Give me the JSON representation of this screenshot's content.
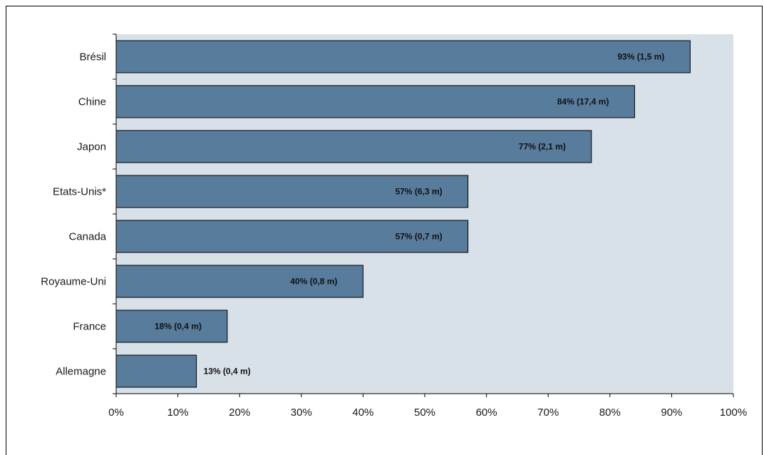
{
  "chart_data": {
    "type": "bar",
    "orientation": "horizontal",
    "categories": [
      "Brésil",
      "Chine",
      "Japon",
      "Etats-Unis*",
      "Canada",
      "Royaume-Uni",
      "France",
      "Allemagne"
    ],
    "values": [
      93,
      84,
      77,
      57,
      57,
      40,
      18,
      13
    ],
    "data_labels": [
      "93% (1,5 m)",
      "84% (17,4 m)",
      "77% (2,1 m)",
      "57% (6,3 m)",
      "57% (0,7 m)",
      "40% (0,8 m)",
      "18% (0,4 m)",
      "13% (0,4 m)"
    ],
    "x_ticks": [
      "0%",
      "10%",
      "20%",
      "30%",
      "40%",
      "50%",
      "60%",
      "70%",
      "80%",
      "90%",
      "100%"
    ],
    "xlim": [
      0,
      100
    ],
    "grid": false,
    "colors": {
      "bar": "#587c9c",
      "bar_border": "#000000",
      "plot_background": "#d8e0e8"
    }
  }
}
